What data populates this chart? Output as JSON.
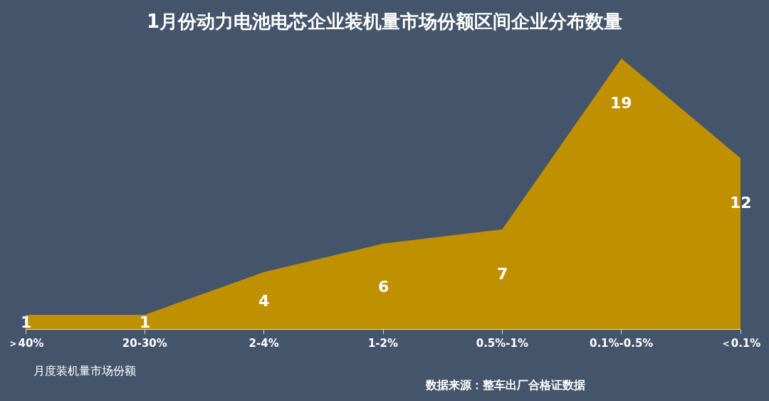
{
  "chart_data": {
    "type": "area",
    "title": "1月份动力电池电芯企业装机量市场份额区间企业分布数量",
    "xlabel": "月度装机量市场份额",
    "categories": [
      "＞40%",
      "20-30%",
      "2-4%",
      "1-2%",
      "0.5%-1%",
      "0.1%-0.5%",
      "＜0.1%"
    ],
    "values": [
      1,
      1,
      4,
      6,
      7,
      19,
      12
    ],
    "color": "#bf9000",
    "data_labels": true,
    "annotations": [
      "数据来源：整车出厂合格证数据"
    ]
  }
}
